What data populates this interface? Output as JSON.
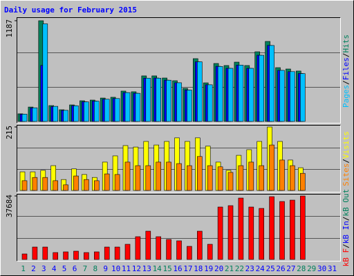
{
  "chart_data": [
    {
      "type": "bar",
      "title": "Daily usage for February 2015",
      "ylim": [
        0,
        1187
      ],
      "yticks": [
        1187
      ],
      "legend_separator": "/",
      "series": [
        {
          "name": "Hits",
          "color": "#00805c",
          "values": [
            90,
            170,
            1187,
            187,
            138,
            195,
            244,
            252,
            276,
            285,
            358,
            350,
            537,
            537,
            512,
            480,
            390,
            740,
            455,
            683,
            659,
            699,
            659,
            821,
            943,
            634,
            618,
            594,
            null,
            null,
            null
          ]
        },
        {
          "name": "Files",
          "color": "#0000ff",
          "values": [
            85,
            160,
            660,
            175,
            130,
            186,
            232,
            240,
            262,
            270,
            340,
            333,
            510,
            512,
            487,
            456,
            371,
            703,
            432,
            650,
            626,
            664,
            626,
            780,
            896,
            602,
            587,
            565,
            null,
            null,
            null
          ]
        },
        {
          "name": "Pages",
          "color": "#00c0ff",
          "values": [
            86,
            161,
            1150,
            178,
            131,
            185,
            231,
            239,
            262,
            270,
            340,
            332,
            510,
            510,
            486,
            456,
            370,
            703,
            432,
            648,
            626,
            664,
            626,
            780,
            895,
            602,
            587,
            564,
            null,
            null,
            null
          ]
        }
      ]
    },
    {
      "type": "bar",
      "ylim": [
        0,
        215
      ],
      "yticks": [
        215
      ],
      "legend_separator": "/",
      "series": [
        {
          "name": "Visits",
          "color": "#ffff00",
          "values": [
            63,
            63,
            68,
            84,
            37,
            73,
            54,
            44,
            96,
            117,
            152,
            147,
            166,
            154,
            166,
            178,
            166,
            178,
            150,
            96,
            68,
            119,
            138,
            166,
            215,
            166,
            103,
            77,
            null,
            null,
            null
          ]
        },
        {
          "name": "Sites",
          "color": "#ff8000",
          "values": [
            33,
            44,
            44,
            33,
            19,
            49,
            37,
            33,
            56,
            54,
            96,
            84,
            84,
            96,
            96,
            91,
            84,
            115,
            84,
            80,
            61,
            84,
            96,
            84,
            154,
            103,
            84,
            58,
            null,
            null,
            null
          ]
        }
      ]
    },
    {
      "type": "bar",
      "ylim": [
        0,
        37684
      ],
      "yticks": [
        37684
      ],
      "legend_separator": "/",
      "categories": [
        "1",
        "2",
        "3",
        "4",
        "5",
        "6",
        "7",
        "8",
        "9",
        "10",
        "11",
        "12",
        "13",
        "14",
        "15",
        "16",
        "17",
        "18",
        "19",
        "20",
        "21",
        "22",
        "23",
        "24",
        "25",
        "26",
        "27",
        "28",
        "29",
        "30",
        "31"
      ],
      "category_colors": [
        "#00805c",
        "#0000ff",
        "#0000ff",
        "#0000ff",
        "#0000ff",
        "#0000ff",
        "#00805c",
        "#00805c",
        "#0000ff",
        "#0000ff",
        "#0000ff",
        "#0000ff",
        "#0000ff",
        "#00805c",
        "#00805c",
        "#0000ff",
        "#0000ff",
        "#0000ff",
        "#0000ff",
        "#0000ff",
        "#00805c",
        "#00805c",
        "#0000ff",
        "#0000ff",
        "#0000ff",
        "#0000ff",
        "#0000ff",
        "#00805c",
        "#00805c",
        "#0000ff",
        "#0000ff"
      ],
      "series": [
        {
          "name": "kB Out",
          "color": "#00805c",
          "values": [
            0,
            0,
            0,
            0,
            0,
            0,
            0,
            0,
            0,
            0,
            0,
            0,
            0,
            0,
            0,
            0,
            0,
            0,
            0,
            0,
            0,
            0,
            0,
            0,
            0,
            0,
            0,
            0,
            null,
            null,
            null
          ]
        },
        {
          "name": "kB In",
          "color": "#0000ff",
          "values": [
            0,
            0,
            0,
            0,
            0,
            0,
            0,
            0,
            0,
            0,
            0,
            0,
            0,
            0,
            0,
            0,
            0,
            0,
            0,
            0,
            0,
            0,
            0,
            0,
            0,
            0,
            0,
            0,
            null,
            null,
            null
          ]
        },
        {
          "name": "kB F",
          "color": "#ff0000",
          "values": [
            3276,
            7370,
            7370,
            4095,
            4505,
            4914,
            4095,
            4505,
            7370,
            7370,
            9010,
            13514,
            16791,
            13514,
            11877,
            11058,
            7782,
            16791,
            9010,
            31125,
            31944,
            36449,
            31125,
            30306,
            37274,
            34400,
            35219,
            37684,
            null,
            null,
            null
          ]
        }
      ]
    }
  ]
}
